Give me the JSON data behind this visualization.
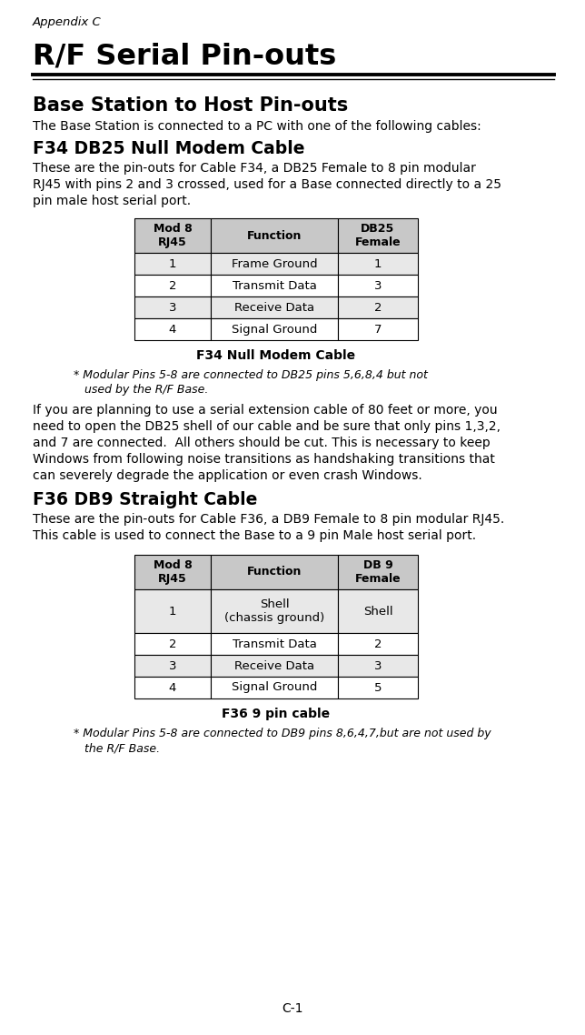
{
  "page_bg": "#ffffff",
  "appendix_label": "Appendix C",
  "main_title": "R/F Serial Pin-outs",
  "section1_title": "Base Station to Host Pin-outs",
  "section1_body": "The Base Station is connected to a PC with one of the following cables:",
  "subsection1_title": "F34 DB25 Null Modem Cable",
  "subsection1_body1": "These are the pin-outs for Cable F34, a DB25 Female to 8 pin modular",
  "subsection1_body2": "RJ45 with pins 2 and 3 crossed, used for a Base connected directly to a 25",
  "subsection1_body3": "pin male host serial port.",
  "table1_headers": [
    "Mod 8\nRJ45",
    "Function",
    "DB25\nFemale"
  ],
  "table1_rows": [
    [
      "1",
      "Frame Ground",
      "1"
    ],
    [
      "2",
      "Transmit Data",
      "3"
    ],
    [
      "3",
      "Receive Data",
      "2"
    ],
    [
      "4",
      "Signal Ground",
      "7"
    ]
  ],
  "table1_caption": "F34 Null Modem Cable",
  "table1_note1": "* Modular Pins 5-8 are connected to DB25 pins 5,6,8,4 but not",
  "table1_note2": "   used by the R/F Base.",
  "middle_body1": "If you are planning to use a serial extension cable of 80 feet or more, you",
  "middle_body2": "need to open the DB25 shell of our cable and be sure that only pins 1,3,2,",
  "middle_body3": "and 7 are connected.  All others should be cut. This is necessary to keep",
  "middle_body4": "Windows from following noise transitions as handshaking transitions that",
  "middle_body5": "can severely degrade the application or even crash Windows.",
  "subsection2_title": "F36 DB9 Straight Cable",
  "subsection2_body1": "These are the pin-outs for Cable F36, a DB9 Female to 8 pin modular RJ45.",
  "subsection2_body2": "This cable is used to connect the Base to a 9 pin Male host serial port.",
  "table2_headers": [
    "Mod 8\nRJ45",
    "Function",
    "DB 9\nFemale"
  ],
  "table2_rows": [
    [
      "1",
      "Shell\n(chassis ground)",
      "Shell"
    ],
    [
      "2",
      "Transmit Data",
      "2"
    ],
    [
      "3",
      "Receive Data",
      "3"
    ],
    [
      "4",
      "Signal Ground",
      "5"
    ]
  ],
  "table2_caption": "F36 9 pin cable",
  "table2_note1": "* Modular Pins 5-8 are connected to DB9 pins 8,6,4,7,but are not used by",
  "table2_note2": "   the R/F Base.",
  "footer": "C-1",
  "header_bg": "#c8c8c8",
  "row_bg1": "#e8e8e8",
  "row_bg2": "#ffffff",
  "table_border": "#000000",
  "lm": 36,
  "rm": 610,
  "dpi": 100,
  "fig_w": 6.44,
  "fig_h": 11.38
}
